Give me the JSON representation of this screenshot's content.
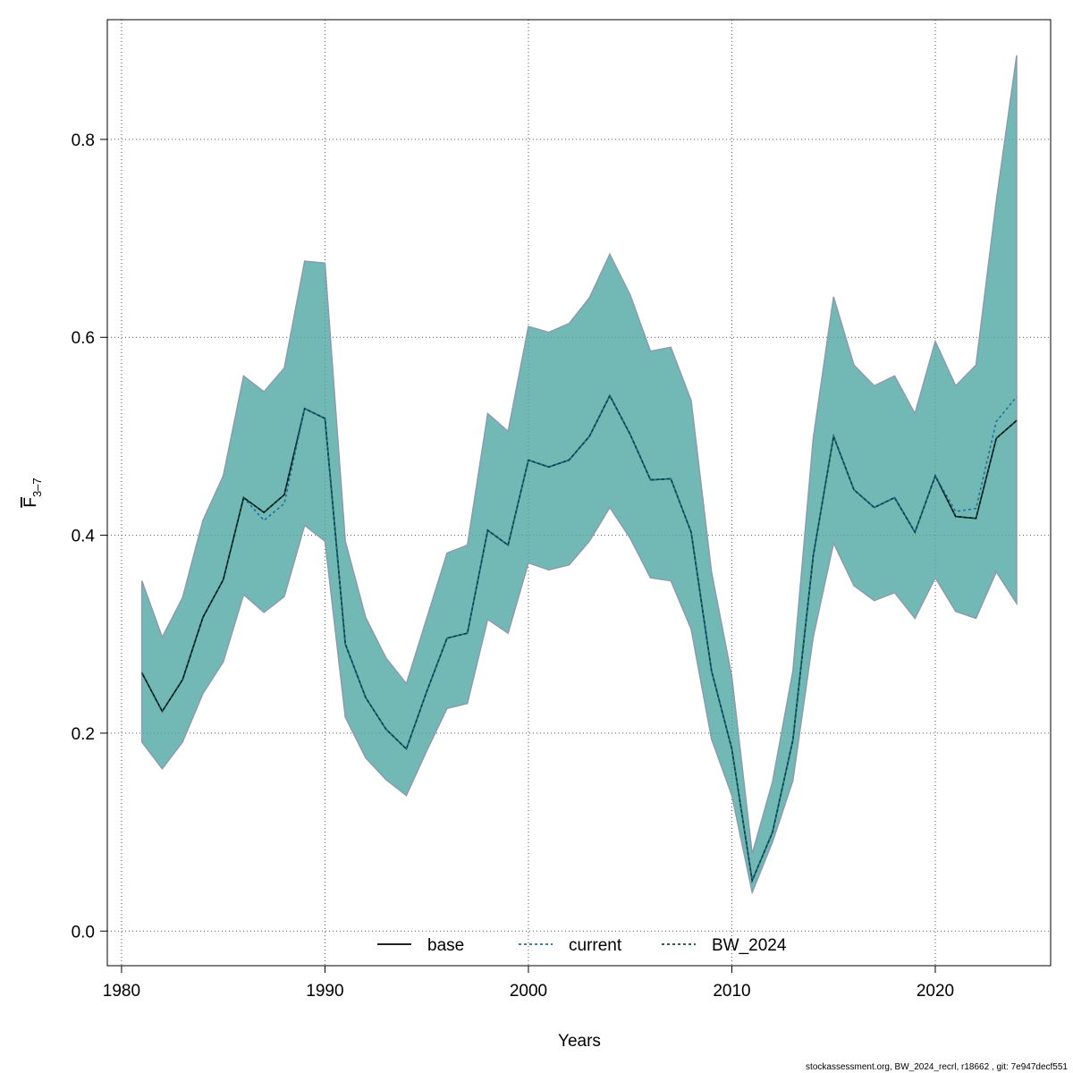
{
  "chart_data": {
    "type": "line",
    "xlabel": "Years",
    "ylabel": "F",
    "ylabel_sub": "3–7",
    "footer": "stockassessment.org, BW_2024_recrl, r18662 , git: 7e947decf551",
    "x": [
      1981,
      1982,
      1983,
      1984,
      1985,
      1986,
      1987,
      1988,
      1989,
      1990,
      1991,
      1992,
      1993,
      1994,
      1995,
      1996,
      1997,
      1998,
      1999,
      2000,
      2001,
      2002,
      2003,
      2004,
      2005,
      2006,
      2007,
      2008,
      2009,
      2010,
      2011,
      2012,
      2013,
      2014,
      2015,
      2016,
      2017,
      2018,
      2019,
      2020,
      2021,
      2022,
      2023,
      2024
    ],
    "series": [
      {
        "name": "base",
        "color": "#000000",
        "dash": "solid",
        "values": [
          0.261,
          0.222,
          0.254,
          0.317,
          0.355,
          0.438,
          0.423,
          0.441,
          0.528,
          0.518,
          0.29,
          0.236,
          0.204,
          0.184,
          0.242,
          0.296,
          0.301,
          0.405,
          0.39,
          0.476,
          0.469,
          0.476,
          0.5,
          0.541,
          0.502,
          0.456,
          0.457,
          0.403,
          0.263,
          0.184,
          0.051,
          0.1,
          0.193,
          0.379,
          0.5,
          0.446,
          0.428,
          0.438,
          0.403,
          0.46,
          0.419,
          0.417,
          0.498,
          0.516
        ]
      },
      {
        "name": "current",
        "color": "#1f6fa0",
        "dash": "dotted",
        "values": [
          0.261,
          0.222,
          0.254,
          0.317,
          0.355,
          0.438,
          0.415,
          0.432,
          0.528,
          0.518,
          0.29,
          0.236,
          0.204,
          0.184,
          0.242,
          0.296,
          0.301,
          0.405,
          0.39,
          0.476,
          0.469,
          0.476,
          0.5,
          0.541,
          0.502,
          0.456,
          0.457,
          0.403,
          0.263,
          0.184,
          0.051,
          0.1,
          0.193,
          0.379,
          0.5,
          0.446,
          0.428,
          0.438,
          0.403,
          0.46,
          0.424,
          0.427,
          0.515,
          0.54
        ]
      },
      {
        "name": "BW_2024",
        "color": "#0b4a3c",
        "dash": "dotted",
        "band_color": "#4fa8a4",
        "values": [
          0.261,
          0.222,
          0.254,
          0.317,
          0.355,
          0.438,
          0.423,
          0.441,
          0.528,
          0.518,
          0.29,
          0.236,
          0.204,
          0.184,
          0.242,
          0.296,
          0.301,
          0.405,
          0.39,
          0.476,
          0.469,
          0.476,
          0.5,
          0.541,
          0.502,
          0.456,
          0.457,
          0.403,
          0.263,
          0.184,
          0.051,
          0.1,
          0.193,
          0.379,
          0.5,
          0.446,
          0.428,
          0.438,
          0.403,
          0.46,
          0.419,
          0.417,
          0.498,
          0.516
        ],
        "upper": [
          0.354,
          0.297,
          0.337,
          0.415,
          0.46,
          0.561,
          0.545,
          0.569,
          0.677,
          0.675,
          0.394,
          0.317,
          0.276,
          0.25,
          0.316,
          0.382,
          0.39,
          0.523,
          0.505,
          0.611,
          0.605,
          0.614,
          0.64,
          0.684,
          0.643,
          0.586,
          0.59,
          0.536,
          0.363,
          0.257,
          0.078,
          0.151,
          0.263,
          0.498,
          0.641,
          0.572,
          0.551,
          0.561,
          0.523,
          0.596,
          0.551,
          0.572,
          0.738,
          0.885
        ],
        "lower": [
          0.191,
          0.164,
          0.191,
          0.24,
          0.272,
          0.34,
          0.322,
          0.338,
          0.41,
          0.394,
          0.216,
          0.175,
          0.153,
          0.137,
          0.182,
          0.225,
          0.23,
          0.315,
          0.301,
          0.372,
          0.365,
          0.37,
          0.394,
          0.428,
          0.397,
          0.357,
          0.354,
          0.305,
          0.194,
          0.137,
          0.039,
          0.09,
          0.152,
          0.297,
          0.392,
          0.349,
          0.334,
          0.342,
          0.316,
          0.357,
          0.323,
          0.316,
          0.363,
          0.331
        ]
      }
    ],
    "xlim": [
      1979.3,
      2025.67
    ],
    "ylim": [
      -0.035,
      0.921
    ],
    "xticks": [
      1980,
      1990,
      2000,
      2010,
      2020
    ],
    "yticks": [
      {
        "value": 0,
        "label": "0.0"
      },
      0.2,
      0.4,
      0.6,
      0.8
    ],
    "grid": true,
    "legend": "bottom"
  }
}
